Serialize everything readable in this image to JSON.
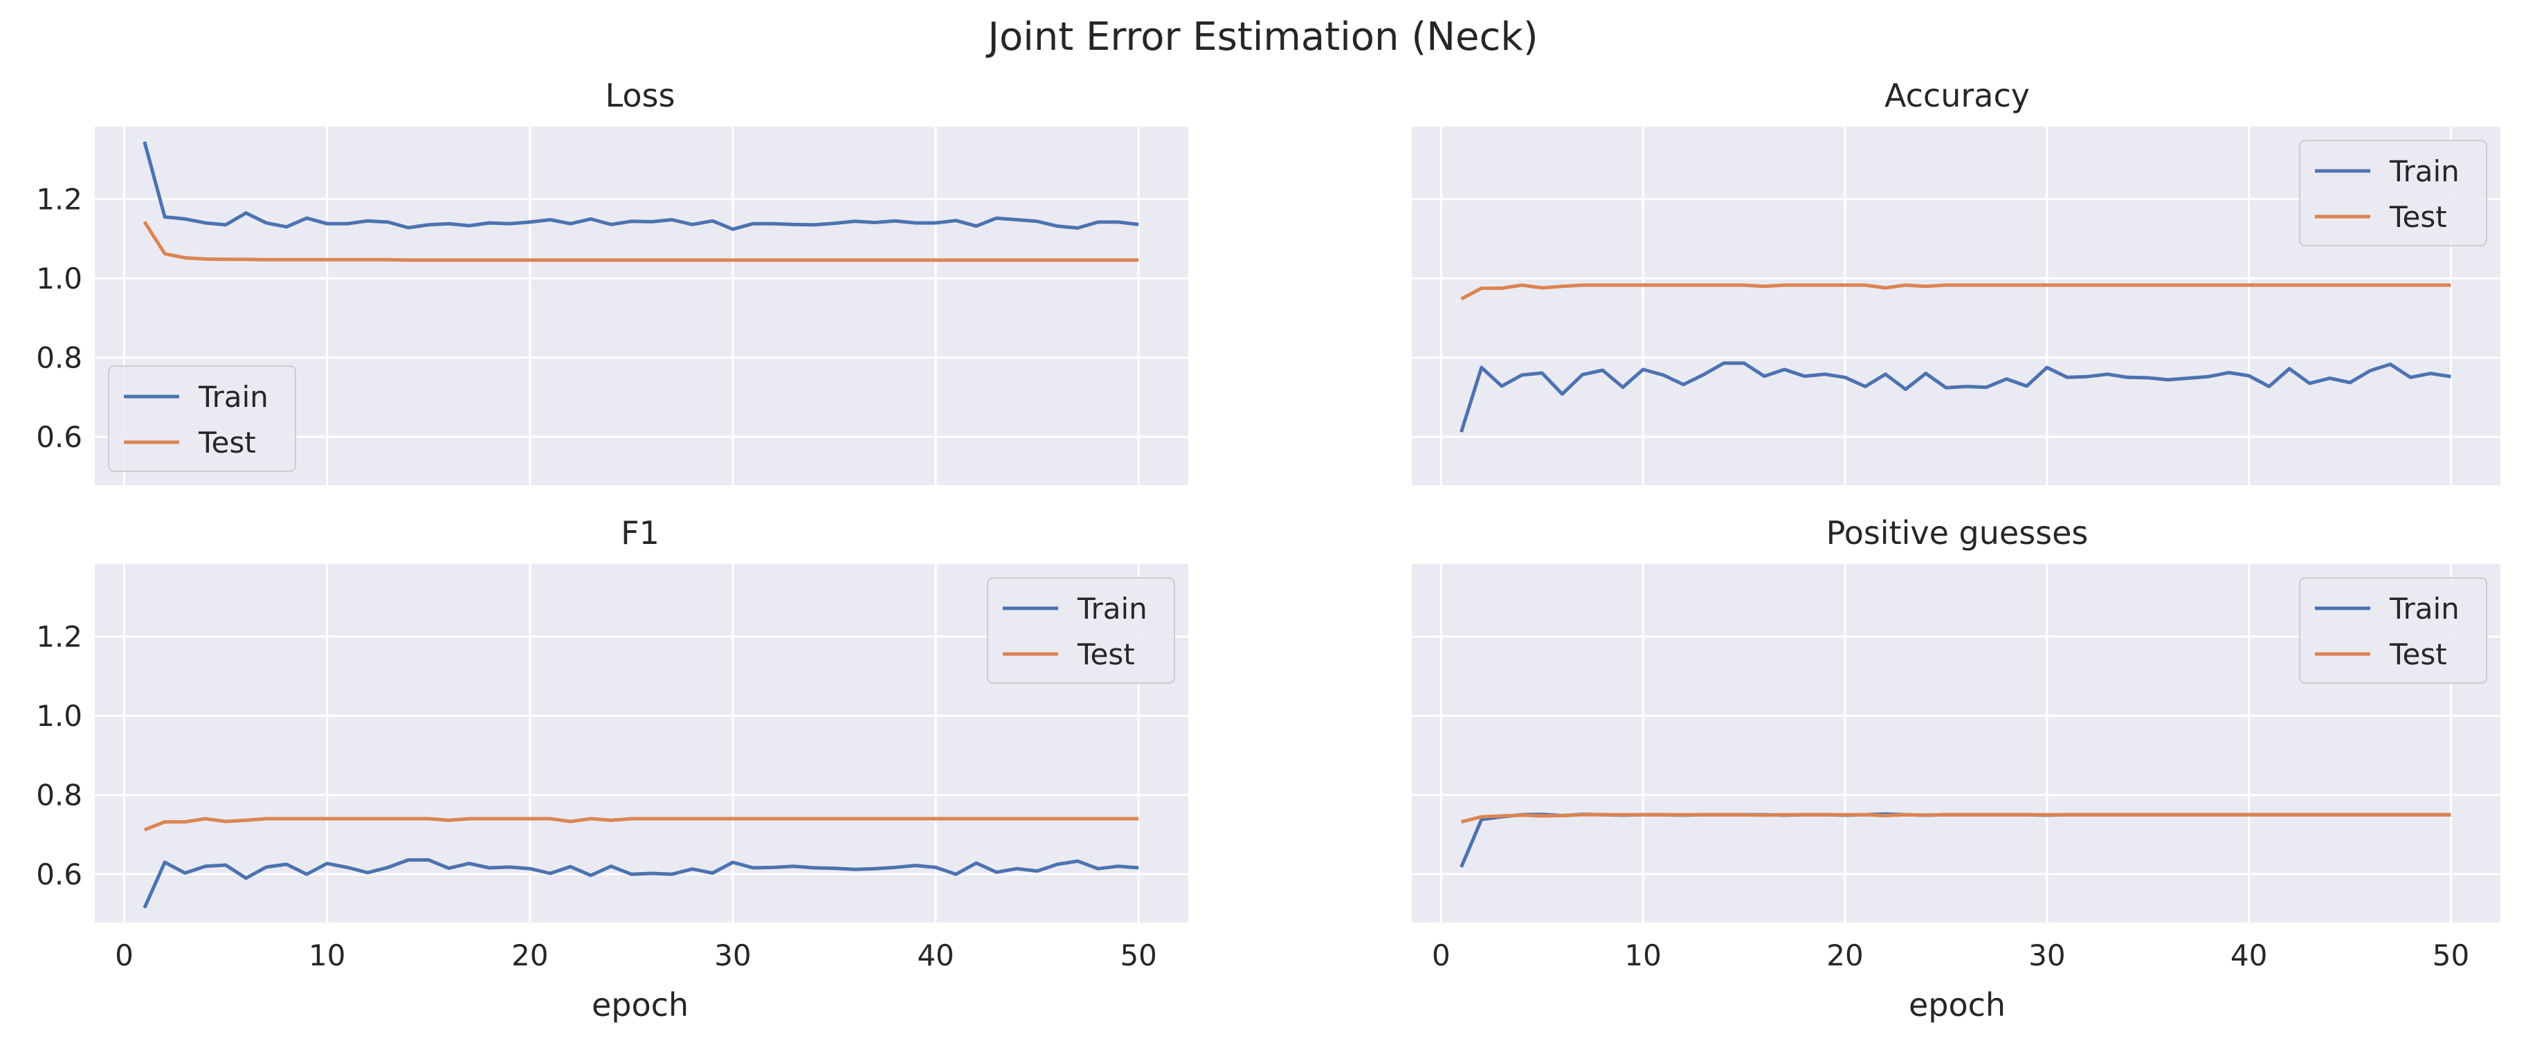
{
  "figure": {
    "title": "Joint Error Estimation (Neck)",
    "xlabel": "epoch",
    "x_ticks": [
      0,
      10,
      20,
      30,
      40,
      50
    ],
    "y_ticks": [
      0.6,
      0.8,
      1.0,
      1.2
    ],
    "xlim": [
      -1.45,
      52.45
    ],
    "ylim": [
      0.478,
      1.383
    ],
    "grid": true,
    "sharex": true,
    "sharey": true
  },
  "chart_data": [
    {
      "type": "line",
      "title": "Loss",
      "legend_placement": "lower-left",
      "x": [
        1,
        2,
        3,
        4,
        5,
        6,
        7,
        8,
        9,
        10,
        11,
        12,
        13,
        14,
        15,
        16,
        17,
        18,
        19,
        20,
        21,
        22,
        23,
        24,
        25,
        26,
        27,
        28,
        29,
        30,
        31,
        32,
        33,
        34,
        35,
        36,
        37,
        38,
        39,
        40,
        41,
        42,
        43,
        44,
        45,
        46,
        47,
        48,
        49,
        50
      ],
      "series": [
        {
          "name": "Train",
          "color": "#4c72b0",
          "values": [
            1.345,
            1.155,
            1.15,
            1.14,
            1.135,
            1.165,
            1.14,
            1.13,
            1.152,
            1.138,
            1.138,
            1.145,
            1.142,
            1.128,
            1.135,
            1.138,
            1.133,
            1.14,
            1.138,
            1.142,
            1.148,
            1.138,
            1.15,
            1.136,
            1.144,
            1.143,
            1.148,
            1.136,
            1.145,
            1.124,
            1.138,
            1.138,
            1.136,
            1.135,
            1.139,
            1.144,
            1.141,
            1.145,
            1.14,
            1.14,
            1.146,
            1.132,
            1.152,
            1.148,
            1.144,
            1.132,
            1.127,
            1.142,
            1.142,
            1.136
          ]
        },
        {
          "name": "Test",
          "color": "#dd8452",
          "values": [
            1.143,
            1.062,
            1.052,
            1.049,
            1.048,
            1.048,
            1.047,
            1.047,
            1.047,
            1.047,
            1.047,
            1.047,
            1.047,
            1.046,
            1.046,
            1.046,
            1.046,
            1.046,
            1.046,
            1.046,
            1.046,
            1.046,
            1.046,
            1.046,
            1.046,
            1.046,
            1.046,
            1.046,
            1.046,
            1.046,
            1.046,
            1.046,
            1.046,
            1.046,
            1.046,
            1.046,
            1.046,
            1.046,
            1.046,
            1.046,
            1.046,
            1.046,
            1.046,
            1.046,
            1.046,
            1.046,
            1.046,
            1.046,
            1.046,
            1.046
          ]
        }
      ]
    },
    {
      "type": "line",
      "title": "Accuracy",
      "legend_placement": "upper-right",
      "x": [
        1,
        2,
        3,
        4,
        5,
        6,
        7,
        8,
        9,
        10,
        11,
        12,
        13,
        14,
        15,
        16,
        17,
        18,
        19,
        20,
        21,
        22,
        23,
        24,
        25,
        26,
        27,
        28,
        29,
        30,
        31,
        32,
        33,
        34,
        35,
        36,
        37,
        38,
        39,
        40,
        41,
        42,
        43,
        44,
        45,
        46,
        47,
        48,
        49,
        50
      ],
      "series": [
        {
          "name": "Train",
          "color": "#4c72b0",
          "values": [
            0.612,
            0.775,
            0.728,
            0.756,
            0.761,
            0.708,
            0.757,
            0.768,
            0.725,
            0.77,
            0.756,
            0.732,
            0.757,
            0.786,
            0.786,
            0.753,
            0.77,
            0.753,
            0.758,
            0.75,
            0.727,
            0.758,
            0.72,
            0.76,
            0.724,
            0.727,
            0.725,
            0.746,
            0.728,
            0.775,
            0.75,
            0.752,
            0.758,
            0.75,
            0.749,
            0.744,
            0.748,
            0.752,
            0.762,
            0.754,
            0.727,
            0.772,
            0.735,
            0.748,
            0.737,
            0.767,
            0.783,
            0.75,
            0.76,
            0.752
          ]
        },
        {
          "name": "Test",
          "color": "#dd8452",
          "values": [
            0.948,
            0.975,
            0.975,
            0.983,
            0.976,
            0.98,
            0.983,
            0.983,
            0.983,
            0.983,
            0.983,
            0.983,
            0.983,
            0.983,
            0.983,
            0.98,
            0.983,
            0.983,
            0.983,
            0.983,
            0.983,
            0.976,
            0.983,
            0.98,
            0.983,
            0.983,
            0.983,
            0.983,
            0.983,
            0.983,
            0.983,
            0.983,
            0.983,
            0.983,
            0.983,
            0.983,
            0.983,
            0.983,
            0.983,
            0.983,
            0.983,
            0.983,
            0.983,
            0.983,
            0.983,
            0.983,
            0.983,
            0.983,
            0.983,
            0.983
          ]
        }
      ]
    },
    {
      "type": "line",
      "title": "F1",
      "legend_placement": "upper-right",
      "x": [
        1,
        2,
        3,
        4,
        5,
        6,
        7,
        8,
        9,
        10,
        11,
        12,
        13,
        14,
        15,
        16,
        17,
        18,
        19,
        20,
        21,
        22,
        23,
        24,
        25,
        26,
        27,
        28,
        29,
        30,
        31,
        32,
        33,
        34,
        35,
        36,
        37,
        38,
        39,
        40,
        41,
        42,
        43,
        44,
        45,
        46,
        47,
        48,
        49,
        50
      ],
      "series": [
        {
          "name": "Train",
          "color": "#4c72b0",
          "values": [
            0.515,
            0.63,
            0.603,
            0.62,
            0.623,
            0.59,
            0.618,
            0.625,
            0.6,
            0.627,
            0.617,
            0.604,
            0.617,
            0.636,
            0.636,
            0.615,
            0.627,
            0.616,
            0.618,
            0.614,
            0.602,
            0.619,
            0.597,
            0.62,
            0.6,
            0.602,
            0.6,
            0.613,
            0.603,
            0.63,
            0.616,
            0.617,
            0.62,
            0.616,
            0.615,
            0.612,
            0.614,
            0.617,
            0.622,
            0.617,
            0.6,
            0.628,
            0.605,
            0.614,
            0.608,
            0.625,
            0.633,
            0.614,
            0.62,
            0.616
          ]
        },
        {
          "name": "Test",
          "color": "#dd8452",
          "values": [
            0.712,
            0.732,
            0.732,
            0.74,
            0.733,
            0.736,
            0.74,
            0.74,
            0.74,
            0.74,
            0.74,
            0.74,
            0.74,
            0.74,
            0.74,
            0.736,
            0.74,
            0.74,
            0.74,
            0.74,
            0.74,
            0.733,
            0.74,
            0.736,
            0.74,
            0.74,
            0.74,
            0.74,
            0.74,
            0.74,
            0.74,
            0.74,
            0.74,
            0.74,
            0.74,
            0.74,
            0.74,
            0.74,
            0.74,
            0.74,
            0.74,
            0.74,
            0.74,
            0.74,
            0.74,
            0.74,
            0.74,
            0.74,
            0.74,
            0.74
          ]
        }
      ]
    },
    {
      "type": "line",
      "title": "Positive guesses",
      "legend_placement": "upper-right",
      "x": [
        1,
        2,
        3,
        4,
        5,
        6,
        7,
        8,
        9,
        10,
        11,
        12,
        13,
        14,
        15,
        16,
        17,
        18,
        19,
        20,
        21,
        22,
        23,
        24,
        25,
        26,
        27,
        28,
        29,
        30,
        31,
        32,
        33,
        34,
        35,
        36,
        37,
        38,
        39,
        40,
        41,
        42,
        43,
        44,
        45,
        46,
        47,
        48,
        49,
        50
      ],
      "series": [
        {
          "name": "Train",
          "color": "#4c72b0",
          "values": [
            0.618,
            0.738,
            0.745,
            0.75,
            0.751,
            0.748,
            0.751,
            0.75,
            0.749,
            0.75,
            0.75,
            0.749,
            0.75,
            0.75,
            0.75,
            0.75,
            0.749,
            0.75,
            0.75,
            0.749,
            0.75,
            0.752,
            0.75,
            0.749,
            0.75,
            0.75,
            0.75,
            0.75,
            0.75,
            0.749,
            0.75,
            0.75,
            0.75,
            0.75,
            0.75,
            0.75,
            0.75,
            0.75,
            0.75,
            0.75,
            0.75,
            0.75,
            0.75,
            0.75,
            0.75,
            0.75,
            0.75,
            0.75,
            0.75,
            0.75
          ]
        },
        {
          "name": "Test",
          "color": "#dd8452",
          "values": [
            0.732,
            0.745,
            0.747,
            0.749,
            0.747,
            0.748,
            0.75,
            0.75,
            0.75,
            0.75,
            0.75,
            0.75,
            0.75,
            0.75,
            0.75,
            0.749,
            0.75,
            0.75,
            0.75,
            0.75,
            0.75,
            0.748,
            0.75,
            0.749,
            0.75,
            0.75,
            0.75,
            0.75,
            0.75,
            0.75,
            0.75,
            0.75,
            0.75,
            0.75,
            0.75,
            0.75,
            0.75,
            0.75,
            0.75,
            0.75,
            0.75,
            0.75,
            0.75,
            0.75,
            0.75,
            0.75,
            0.75,
            0.75,
            0.75,
            0.75
          ]
        }
      ]
    }
  ]
}
